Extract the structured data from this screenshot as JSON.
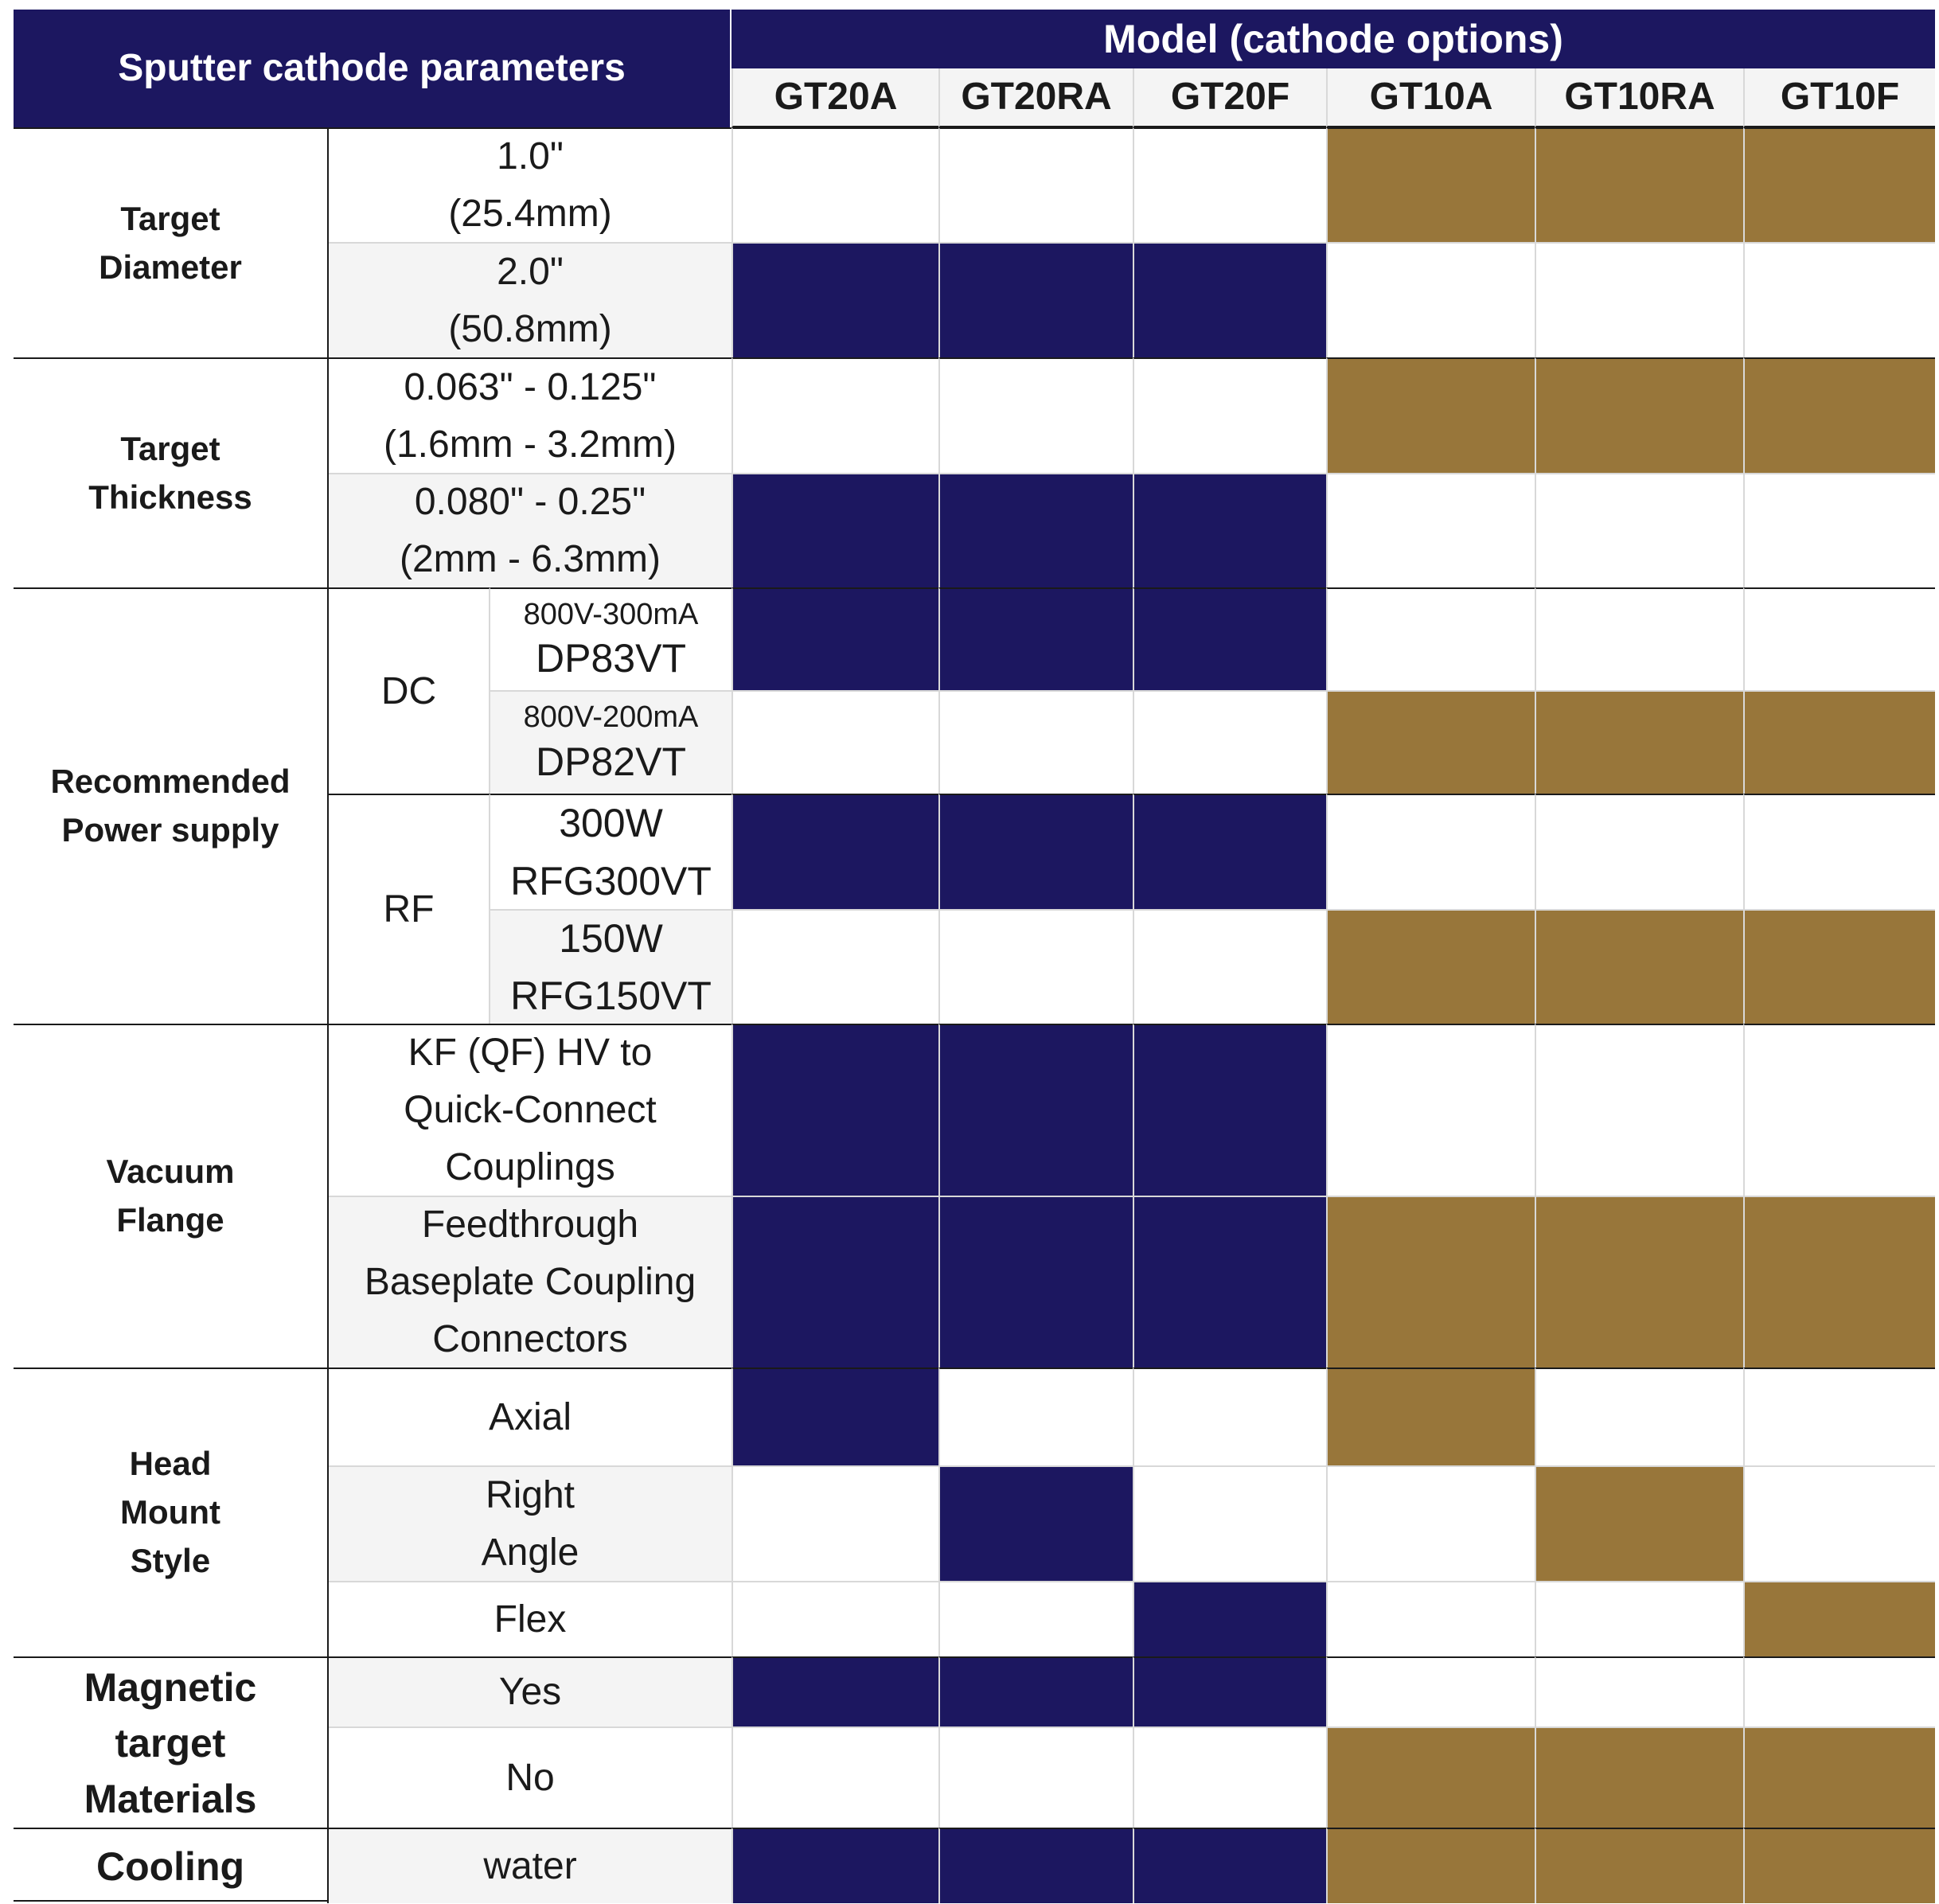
{
  "header": {
    "title": "Sputter cathode parameters",
    "model_heading": "Model (cathode options)",
    "models": [
      "GT20A",
      "GT20RA",
      "GT20F",
      "GT10A",
      "GT10RA",
      "GT10F"
    ]
  },
  "groups": {
    "target_diameter": "Target\nDiameter",
    "target_thickness": "Target\nThickness",
    "power_supply": "Recommended\nPower supply",
    "vacuum_flange": "Vacuum\nFlange",
    "head_mount": "Head\nMount\nStyle",
    "magnetic": "Magnetic\ntarget\nMaterials",
    "cooling": "Cooling"
  },
  "options": {
    "diameter_1": "1.0\"\n(25.4mm)",
    "diameter_2": "2.0\"\n(50.8mm)",
    "thickness_1": "0.063\" - 0.125\"\n(1.6mm - 3.2mm)",
    "thickness_2": "0.080\" - 0.25\"\n(2mm - 6.3mm)",
    "dc": "DC",
    "rf": "RF",
    "dc_1_rating": "800V-300mA",
    "dc_1_model": "DP83VT",
    "dc_2_rating": "800V-200mA",
    "dc_2_model": "DP82VT",
    "rf_1_rating": "300W",
    "rf_1_model": "RFG300VT",
    "rf_2_rating": "150W",
    "rf_2_model": "RFG150VT",
    "flange_1": "KF (QF) HV to\nQuick-Connect\nCouplings",
    "flange_2": "Feedthrough\nBaseplate Coupling\nConnectors",
    "mount_axial": "Axial",
    "mount_right_angle": "Right\nAngle",
    "mount_flex": "Flex",
    "magnetic_yes": "Yes",
    "magnetic_no": "No",
    "cooling_water": "water"
  },
  "colors": {
    "gt20_series": "#1c1760",
    "gt10_series": "#98763a",
    "header_bg": "#1c1760",
    "empty": "#ffffff"
  },
  "compatibility": {
    "columns": [
      "GT20A",
      "GT20RA",
      "GT20F",
      "GT10A",
      "GT10RA",
      "GT10F"
    ],
    "rows": [
      {
        "option": "1.0\" (25.4mm)",
        "marks": [
          0,
          0,
          0,
          1,
          1,
          1
        ]
      },
      {
        "option": "2.0\" (50.8mm)",
        "marks": [
          1,
          1,
          1,
          0,
          0,
          0
        ]
      },
      {
        "option": "0.063\" - 0.125\" (1.6mm - 3.2mm)",
        "marks": [
          0,
          0,
          0,
          1,
          1,
          1
        ]
      },
      {
        "option": "0.080\" - 0.25\" (2mm - 6.3mm)",
        "marks": [
          1,
          1,
          1,
          0,
          0,
          0
        ]
      },
      {
        "option": "DP83VT",
        "marks": [
          1,
          1,
          1,
          0,
          0,
          0
        ]
      },
      {
        "option": "DP82VT",
        "marks": [
          0,
          0,
          0,
          1,
          1,
          1
        ]
      },
      {
        "option": "RFG300VT",
        "marks": [
          1,
          1,
          1,
          0,
          0,
          0
        ]
      },
      {
        "option": "RFG150VT",
        "marks": [
          0,
          0,
          0,
          1,
          1,
          1
        ]
      },
      {
        "option": "KF (QF) HV to Quick-Connect Couplings",
        "marks": [
          1,
          1,
          1,
          0,
          0,
          0
        ]
      },
      {
        "option": "Feedthrough Baseplate Coupling Connectors",
        "marks": [
          1,
          1,
          1,
          1,
          1,
          1
        ]
      },
      {
        "option": "Axial",
        "marks": [
          1,
          0,
          0,
          1,
          0,
          0
        ]
      },
      {
        "option": "Right Angle",
        "marks": [
          0,
          1,
          0,
          0,
          1,
          0
        ]
      },
      {
        "option": "Flex",
        "marks": [
          0,
          0,
          1,
          0,
          0,
          1
        ]
      },
      {
        "option": "Yes",
        "marks": [
          1,
          1,
          1,
          0,
          0,
          0
        ]
      },
      {
        "option": "No",
        "marks": [
          0,
          0,
          0,
          1,
          1,
          1
        ]
      },
      {
        "option": "water",
        "marks": [
          1,
          1,
          1,
          1,
          1,
          1
        ]
      }
    ]
  }
}
